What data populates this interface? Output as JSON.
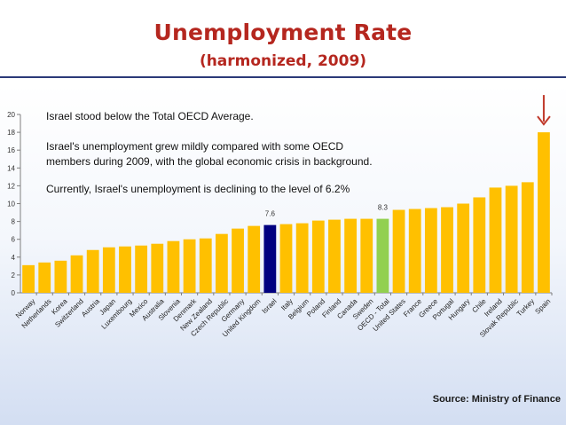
{
  "header": {
    "title": "Unemployment Rate",
    "subtitle": "(harmonized, 2009)"
  },
  "annotations": {
    "note1": "Israel stood below the Total OECD Average.",
    "note2_line1": "Israel's unemployment grew mildly compared with some OECD",
    "note2_line2": "members during 2009, with the global economic crisis in background.",
    "note3": "Currently, Israel's unemployment is declining to the level of 6.2%"
  },
  "footer": {
    "source": "Source: Ministry of Finance"
  },
  "colors": {
    "bar": "#ffc000",
    "israel": "#000080",
    "oecd": "#92d050",
    "arrow": "#c0392b",
    "title": "#b5271f"
  },
  "chart_data": {
    "type": "bar",
    "title": "Unemployment Rate (harmonized, 2009)",
    "xlabel": "",
    "ylabel": "",
    "ylim": [
      0,
      20
    ],
    "yticks": [
      0,
      2,
      4,
      6,
      8,
      10,
      12,
      14,
      16,
      18,
      20
    ],
    "grid": false,
    "categories": [
      "Norway",
      "Netherlands",
      "Korea",
      "Switzerland",
      "Austria",
      "Japan",
      "Luxembourg",
      "Mexico",
      "Australia",
      "Slovenia",
      "Denmark",
      "New Zealand",
      "Czech Republic",
      "Germany",
      "United Kingdom",
      "Israel",
      "Italy",
      "Belgium",
      "Poland",
      "Finland",
      "Canada",
      "Sweden",
      "OECD - Total",
      "United States",
      "France",
      "Greece",
      "Portugal",
      "Hungary",
      "Chile",
      "Ireland",
      "Slovak Republic",
      "Turkey",
      "Spain"
    ],
    "values": [
      3.1,
      3.4,
      3.6,
      4.2,
      4.8,
      5.1,
      5.2,
      5.3,
      5.5,
      5.8,
      6.0,
      6.1,
      6.6,
      7.2,
      7.5,
      7.6,
      7.7,
      7.8,
      8.1,
      8.2,
      8.3,
      8.3,
      8.3,
      9.3,
      9.4,
      9.5,
      9.6,
      10.0,
      10.7,
      11.8,
      12.0,
      12.4,
      18.0
    ],
    "highlight": {
      "Israel": "israel",
      "OECD - Total": "oecd"
    },
    "data_labels": [
      {
        "category": "Israel",
        "text": "7.6"
      },
      {
        "category": "OECD - Total",
        "text": "8.3"
      }
    ],
    "arrow_target": "Spain"
  }
}
